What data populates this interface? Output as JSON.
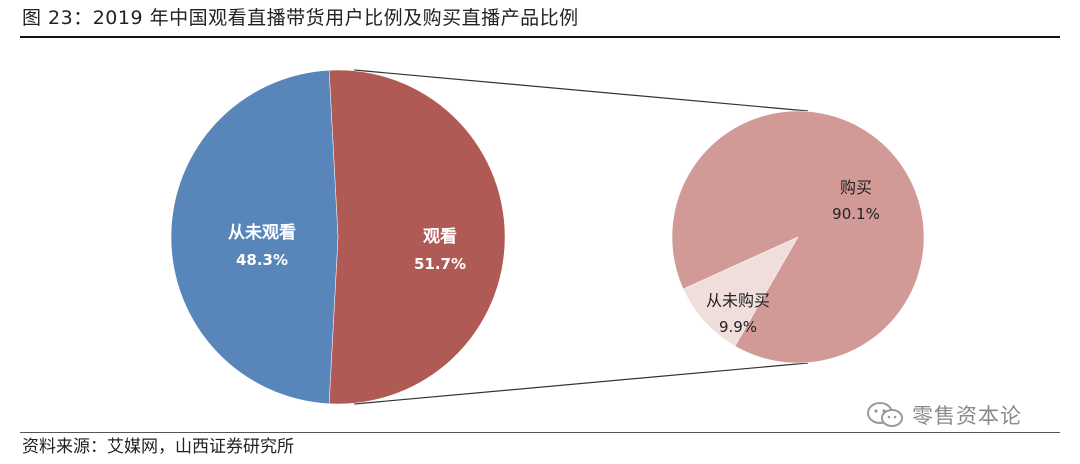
{
  "figure": {
    "title": "图 23：2019 年中国观看直播带货用户比例及购买直播产品比例",
    "source": "资料来源：艾媒网，山西证券研究所",
    "watermark": "零售资本论"
  },
  "colors": {
    "watched": "#B05A55",
    "never_watched": "#5886BA",
    "bought": "#D29A97",
    "never_bought": "#F0DEDD",
    "connector": "#333333"
  },
  "chart_data": [
    {
      "type": "pie",
      "title": "",
      "series": [
        {
          "label": "观看",
          "value": 51.7,
          "value_label": "51.7%",
          "color": "#B05A55"
        },
        {
          "label": "从未观看",
          "value": 48.3,
          "value_label": "48.3%",
          "color": "#5886BA"
        }
      ]
    },
    {
      "type": "pie",
      "title": "",
      "parent_slice": "观看",
      "series": [
        {
          "label": "购买",
          "value": 90.1,
          "value_label": "90.1%",
          "color": "#D29A97"
        },
        {
          "label": "从未购买",
          "value": 9.9,
          "value_label": "9.9%",
          "color": "#F0DEDD"
        }
      ]
    }
  ]
}
